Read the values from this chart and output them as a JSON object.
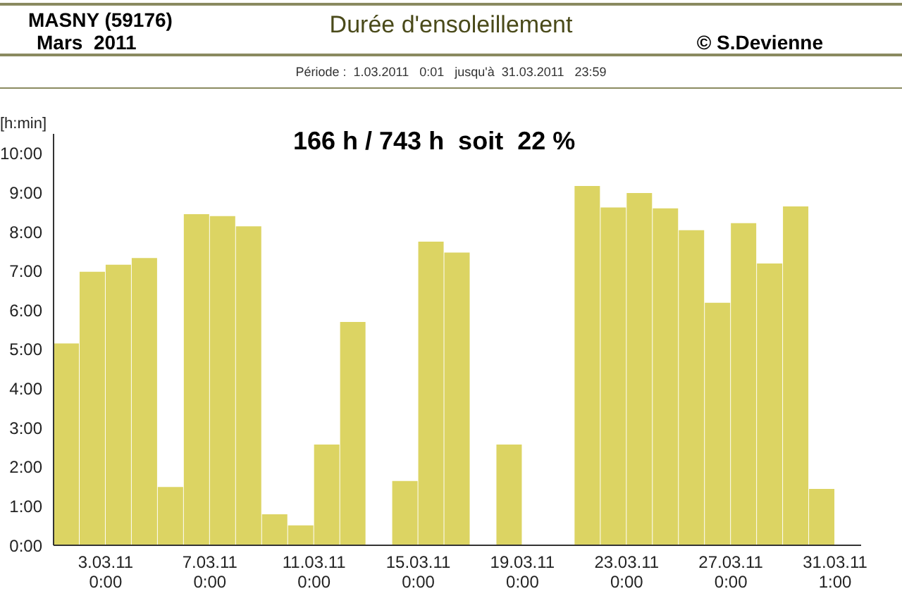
{
  "chart_data": {
    "type": "bar",
    "title": "Durée d'ensoleillement",
    "subtitle": "Période :  1.03.2011   0:01   jusqu'à  31.03.2011   23:59",
    "ylabel": "[h:min]",
    "annotations": [
      "MASNY (59176)",
      "Mars  2011",
      "© S.Devienne",
      "166 h / 743 h  soit  22 %"
    ],
    "categories": [
      null,
      null,
      "3.03.11\n0:00",
      null,
      null,
      null,
      "7.03.11\n0:00",
      null,
      null,
      null,
      "11.03.11\n0:00",
      null,
      null,
      null,
      "15.03.11\n0:00",
      null,
      null,
      null,
      "19.03.11\n0:00",
      null,
      null,
      null,
      "23.03.11\n0:00",
      null,
      null,
      null,
      "27.03.11\n0:00",
      null,
      null,
      null,
      "31.03.11\n1:00"
    ],
    "values": [
      5.15,
      6.98,
      7.16,
      7.33,
      1.49,
      8.45,
      8.4,
      8.14,
      0.79,
      0.51,
      2.57,
      5.7,
      0,
      1.64,
      7.75,
      7.47,
      0,
      2.57,
      0,
      0,
      9.17,
      8.62,
      8.99,
      8.6,
      8.04,
      6.19,
      8.22,
      7.19,
      8.65,
      1.44,
      0
    ],
    "color": "#dcd463",
    "ylim": [
      0,
      10.5
    ],
    "yticks": [
      {
        "value": 0,
        "label": "0:00"
      },
      {
        "value": 1,
        "label": "1:00"
      },
      {
        "value": 2,
        "label": "2:00"
      },
      {
        "value": 3,
        "label": "3:00"
      },
      {
        "value": 4,
        "label": "4:00"
      },
      {
        "value": 5,
        "label": "5:00"
      },
      {
        "value": 6,
        "label": "6:00"
      },
      {
        "value": 7,
        "label": "7:00"
      },
      {
        "value": 8,
        "label": "8:00"
      },
      {
        "value": 9,
        "label": "9:00"
      },
      {
        "value": 10,
        "label": "10:00"
      }
    ]
  }
}
